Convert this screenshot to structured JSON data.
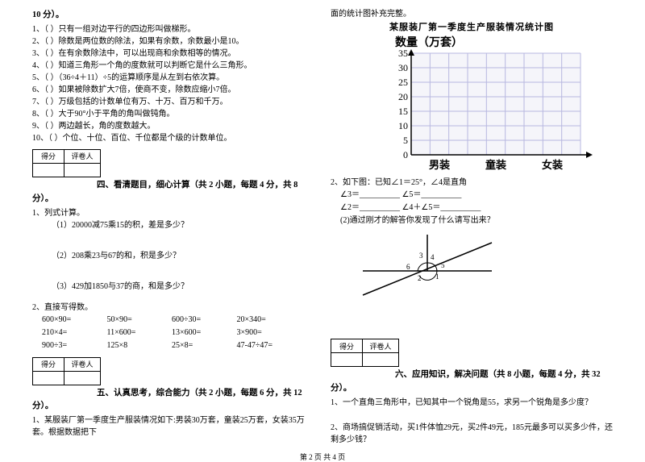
{
  "leftCol": {
    "headerScore": "10 分）。",
    "judgeItems": [
      "1、（    ）只有一组对边平行的四边形叫做梯形。",
      "2、（    ）除数是两位数的除法，如果有余数，余数最小是10。",
      "3、（    ）在有余数除法中，可以出现商和余数相等的情况。",
      "4、（    ）知道三角形一个角的度数就可以判断它是什么三角形。",
      "5、（    ）（36÷4＋11）÷5的运算顺序是从左到右依次算。",
      "6、（    ）如果被除数扩大7倍，使商不变，除数应缩小7倍。",
      "7、（    ）万级包括的计数单位有万、十万、百万和千万。",
      "8、（    ）大于90°小于平角的角叫做钝角。",
      "9、（    ）两边越长，角的度数越大。",
      "10、（    ）个位、十位、百位、千位都是个级的计数单位。"
    ],
    "scoreHeaders": [
      "得分",
      "评卷人"
    ],
    "section4Title": "四、看清题目，细心计算（共 2 小题，每题 4 分，共 8",
    "section4End": "分）。",
    "calc1": "1、列式计算。",
    "calc1Items": [
      "（1）20000减75乘15的积，差是多少？",
      "（2）208乘23与67的和，积是多少？",
      "（3）429加1850与37的商，和是多少？"
    ],
    "calc2": "2、直接写得数。",
    "mathRows": [
      [
        "600×90=",
        "50×90=",
        "600÷30=",
        "20×340="
      ],
      [
        "210×4=",
        "11×600=",
        "13×600=",
        "3×900="
      ],
      [
        "900÷3=",
        "125×8",
        "25×8=",
        "47-47÷47="
      ]
    ],
    "section5Title": "五、认真思考，综合能力（共 2 小题，每题 6 分，共 12",
    "section5End": "分）。",
    "q5_1": "1、某服装厂第一季度生产服装情况如下:男装30万套，童装25万套，女装35万套。根据数据把下"
  },
  "rightCol": {
    "topLine": "面的统计图补充完整。",
    "chartTitle": "某服装厂第一季度生产服装情况统计图",
    "yAxisLabel": "数量（万套）",
    "yTicks": [
      "35",
      "30",
      "25",
      "20",
      "15",
      "10",
      "5",
      "0"
    ],
    "xLabels": [
      "男装",
      "童装",
      "女装"
    ],
    "chartColors": {
      "grid": "#b8b8e0",
      "gridFill": "#f5f5fa",
      "axis": "#000000",
      "text": "#000000"
    },
    "q2": "2、如下图：已知∠1＝25°，∠4是直角",
    "q2Lines": [
      "∠3＝__________    ∠5＝__________",
      "∠2＝__________    ∠4＋∠5＝__________",
      "(2)通过刚才的解答你发现了什么请写出来？"
    ],
    "angleDiagram": {
      "labels": [
        "1",
        "2",
        "3",
        "4",
        "5",
        "6"
      ],
      "lineColor": "#000000"
    },
    "section6Title": "六、应用知识，解决问题（共 8 小题，每题 4 分，共 32",
    "section6End": "分）。",
    "q6_1": "1、一个直角三角形中，已知其中一个锐角是55，求另一个锐角是多少度？",
    "q6_2": "2、商场搞促销活动，买1件体恤29元，买2件49元，185元最多可以买多少件，还剩多少钱？"
  },
  "footer": "第 2 页 共 4 页"
}
